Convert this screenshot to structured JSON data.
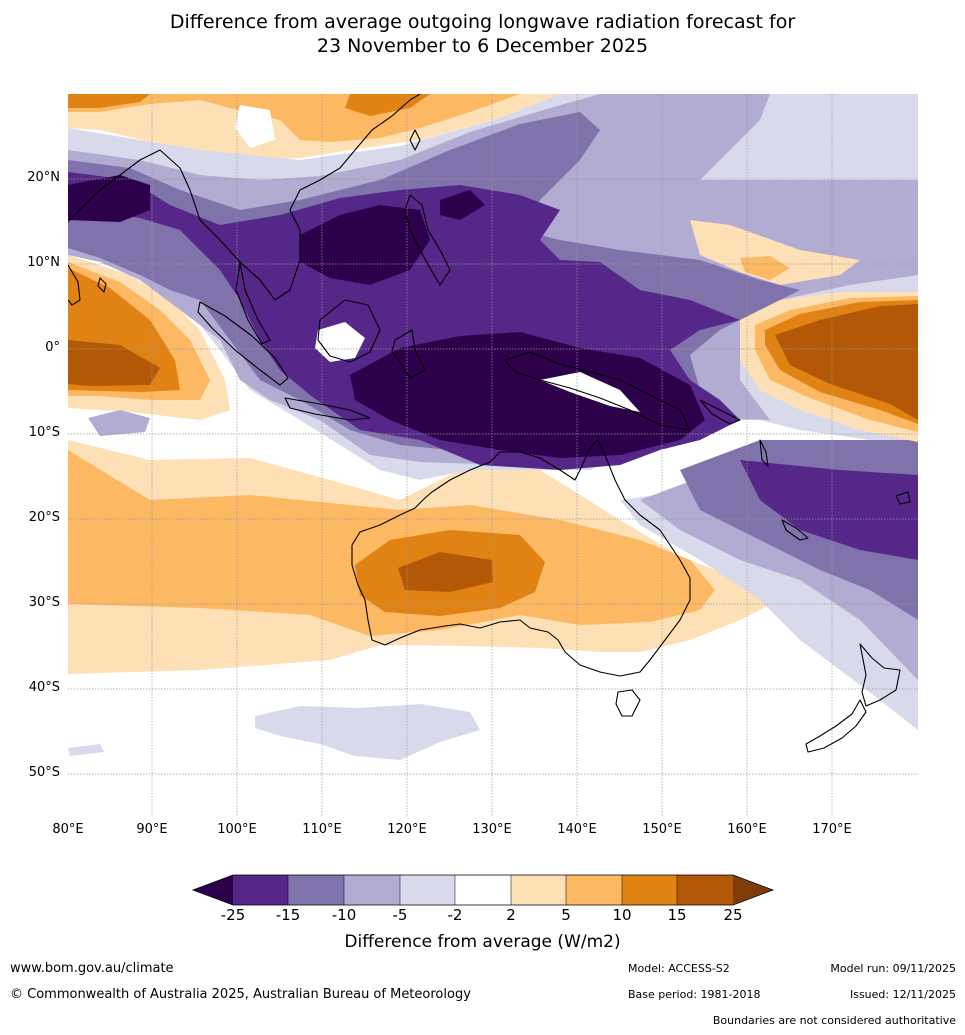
{
  "title": {
    "line1": "Difference from average outgoing longwave radiation forecast for",
    "line2": "23 November to 6 December 2025"
  },
  "map": {
    "lat_labels": [
      "20°N",
      "10°N",
      "0°",
      "10°S",
      "20°S",
      "30°S",
      "40°S",
      "50°S"
    ],
    "lon_labels": [
      "80°E",
      "90°E",
      "100°E",
      "110°E",
      "120°E",
      "130°E",
      "140°E",
      "150°E",
      "160°E",
      "170°E"
    ]
  },
  "legend": {
    "title": "Difference from average (W/m2)",
    "tick_labels": [
      "-25",
      "-15",
      "-10",
      "-5",
      "-2",
      "2",
      "5",
      "10",
      "15",
      "25"
    ],
    "colors": [
      "#2d004b",
      "#542788",
      "#8073ac",
      "#b2abd2",
      "#d8daeb",
      "#ffffff",
      "#fee0b6",
      "#fdb863",
      "#e08214",
      "#b35806",
      "#7f3b08"
    ]
  },
  "footer": {
    "website": "www.bom.gov.au/climate",
    "copyright": "© Commonwealth of Australia 2025, Australian Bureau of Meteorology",
    "model": "Model: ACCESS-S2",
    "base_period": "Base period: 1981-2018",
    "model_run": "Model run: 09/11/2025",
    "issued": "Issued: 12/11/2025",
    "disclaimer": "Boundaries are not considered authoritative"
  }
}
